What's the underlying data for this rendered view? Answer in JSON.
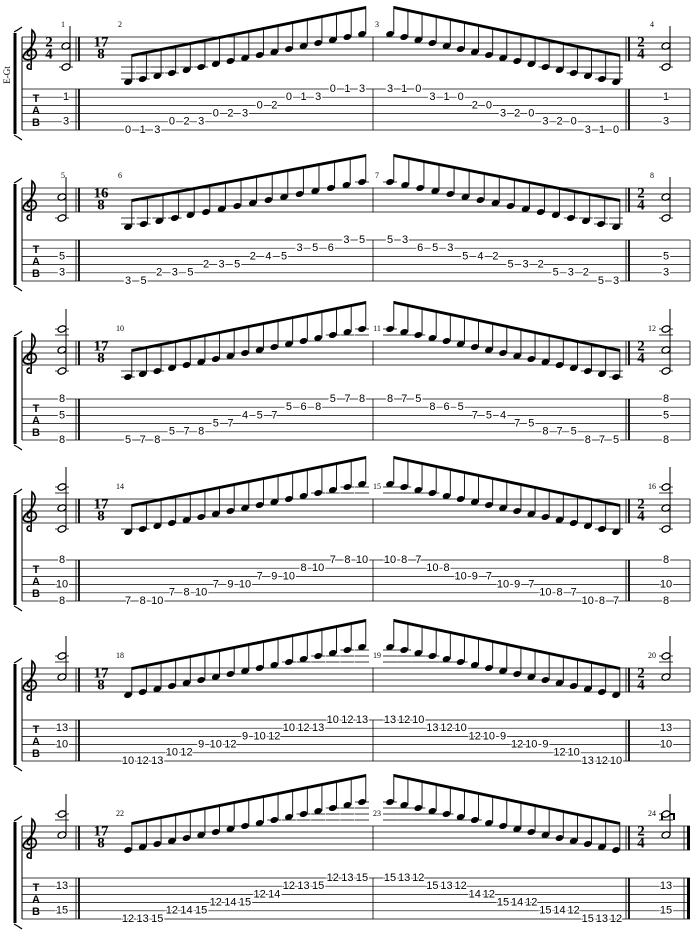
{
  "instrument": "E-Gt",
  "tab_clef": [
    "T",
    "A",
    "B"
  ],
  "systems": [
    {
      "measures": [
        "1",
        "2",
        "3",
        "4"
      ],
      "meter_start": [
        "2",
        "4"
      ],
      "meter_run": [
        "17",
        "8"
      ],
      "meter_chord": [
        "2",
        "4"
      ],
      "chord": [
        [
          2,
          1
        ],
        [
          5,
          3
        ]
      ],
      "ascending": [
        [
          6,
          0
        ],
        [
          6,
          1
        ],
        [
          6,
          3
        ],
        [
          5,
          0
        ],
        [
          5,
          2
        ],
        [
          5,
          3
        ],
        [
          4,
          0
        ],
        [
          4,
          2
        ],
        [
          4,
          3
        ],
        [
          3,
          0
        ],
        [
          3,
          2
        ],
        [
          2,
          0
        ],
        [
          2,
          1
        ],
        [
          2,
          3
        ],
        [
          1,
          0
        ],
        [
          1,
          1
        ],
        [
          1,
          3
        ]
      ],
      "descending": [
        [
          1,
          3
        ],
        [
          1,
          1
        ],
        [
          1,
          0
        ],
        [
          2,
          3
        ],
        [
          2,
          1
        ],
        [
          2,
          0
        ],
        [
          3,
          2
        ],
        [
          3,
          0
        ],
        [
          4,
          3
        ],
        [
          4,
          2
        ],
        [
          4,
          0
        ],
        [
          5,
          3
        ],
        [
          5,
          2
        ],
        [
          5,
          0
        ],
        [
          6,
          3
        ],
        [
          6,
          1
        ],
        [
          6,
          0
        ]
      ]
    },
    {
      "measures": [
        "5",
        "6",
        "7",
        "8"
      ],
      "meter_run": [
        "16",
        "8"
      ],
      "meter_chord": [
        "2",
        "4"
      ],
      "chord": [
        [
          3,
          5
        ],
        [
          5,
          3
        ]
      ],
      "ascending": [
        [
          6,
          3
        ],
        [
          6,
          5
        ],
        [
          5,
          2
        ],
        [
          5,
          3
        ],
        [
          5,
          5
        ],
        [
          4,
          2
        ],
        [
          4,
          3
        ],
        [
          4,
          5
        ],
        [
          3,
          2
        ],
        [
          3,
          4
        ],
        [
          3,
          5
        ],
        [
          2,
          3
        ],
        [
          2,
          5
        ],
        [
          2,
          6
        ],
        [
          1,
          3
        ],
        [
          1,
          5
        ]
      ],
      "descending": [
        [
          1,
          5
        ],
        [
          1,
          3
        ],
        [
          2,
          6
        ],
        [
          2,
          5
        ],
        [
          2,
          3
        ],
        [
          3,
          5
        ],
        [
          3,
          4
        ],
        [
          3,
          2
        ],
        [
          4,
          5
        ],
        [
          4,
          3
        ],
        [
          4,
          2
        ],
        [
          5,
          5
        ],
        [
          5,
          3
        ],
        [
          5,
          2
        ],
        [
          6,
          5
        ],
        [
          6,
          3
        ]
      ]
    },
    {
      "measures": [
        "9",
        "10",
        "11",
        "12"
      ],
      "meter_run": [
        "17",
        "8"
      ],
      "meter_chord": [
        "2",
        "4"
      ],
      "chord": [
        [
          1,
          8
        ],
        [
          3,
          5
        ],
        [
          6,
          8
        ]
      ],
      "ascending": [
        [
          6,
          5
        ],
        [
          6,
          7
        ],
        [
          6,
          8
        ],
        [
          5,
          5
        ],
        [
          5,
          7
        ],
        [
          5,
          8
        ],
        [
          4,
          5
        ],
        [
          4,
          7
        ],
        [
          3,
          4
        ],
        [
          3,
          5
        ],
        [
          3,
          7
        ],
        [
          2,
          5
        ],
        [
          2,
          6
        ],
        [
          2,
          8
        ],
        [
          1,
          5
        ],
        [
          1,
          7
        ],
        [
          1,
          8
        ]
      ],
      "descending": [
        [
          1,
          8
        ],
        [
          1,
          7
        ],
        [
          1,
          5
        ],
        [
          2,
          8
        ],
        [
          2,
          6
        ],
        [
          2,
          5
        ],
        [
          3,
          7
        ],
        [
          3,
          5
        ],
        [
          3,
          4
        ],
        [
          4,
          7
        ],
        [
          4,
          5
        ],
        [
          5,
          8
        ],
        [
          5,
          7
        ],
        [
          5,
          5
        ],
        [
          6,
          8
        ],
        [
          6,
          7
        ],
        [
          6,
          5
        ]
      ]
    },
    {
      "measures": [
        "13",
        "14",
        "15",
        "16"
      ],
      "meter_run": [
        "17",
        "8"
      ],
      "meter_chord": [
        "2",
        "4"
      ],
      "chord": [
        [
          1,
          8
        ],
        [
          4,
          10
        ],
        [
          6,
          8
        ]
      ],
      "ascending": [
        [
          6,
          7
        ],
        [
          6,
          8
        ],
        [
          6,
          10
        ],
        [
          5,
          7
        ],
        [
          5,
          8
        ],
        [
          5,
          10
        ],
        [
          4,
          7
        ],
        [
          4,
          9
        ],
        [
          4,
          10
        ],
        [
          3,
          7
        ],
        [
          3,
          9
        ],
        [
          3,
          10
        ],
        [
          2,
          8
        ],
        [
          2,
          10
        ],
        [
          1,
          7
        ],
        [
          1,
          8
        ],
        [
          1,
          10
        ]
      ],
      "descending": [
        [
          1,
          10
        ],
        [
          1,
          8
        ],
        [
          1,
          7
        ],
        [
          2,
          10
        ],
        [
          2,
          8
        ],
        [
          3,
          10
        ],
        [
          3,
          9
        ],
        [
          3,
          7
        ],
        [
          4,
          10
        ],
        [
          4,
          9
        ],
        [
          4,
          7
        ],
        [
          5,
          10
        ],
        [
          5,
          8
        ],
        [
          5,
          7
        ],
        [
          6,
          10
        ],
        [
          6,
          8
        ],
        [
          6,
          7
        ]
      ]
    },
    {
      "measures": [
        "17",
        "18",
        "19",
        "20"
      ],
      "meter_run": [
        "17",
        "8"
      ],
      "meter_chord": [
        "2",
        "4"
      ],
      "chord": [
        [
          2,
          13
        ],
        [
          4,
          10
        ]
      ],
      "ascending": [
        [
          6,
          10
        ],
        [
          6,
          12
        ],
        [
          6,
          13
        ],
        [
          5,
          10
        ],
        [
          5,
          12
        ],
        [
          4,
          9
        ],
        [
          4,
          10
        ],
        [
          4,
          12
        ],
        [
          3,
          9
        ],
        [
          3,
          10
        ],
        [
          3,
          12
        ],
        [
          2,
          10
        ],
        [
          2,
          12
        ],
        [
          2,
          13
        ],
        [
          1,
          10
        ],
        [
          1,
          12
        ],
        [
          1,
          13
        ]
      ],
      "descending": [
        [
          1,
          13
        ],
        [
          1,
          12
        ],
        [
          1,
          10
        ],
        [
          2,
          13
        ],
        [
          2,
          12
        ],
        [
          2,
          10
        ],
        [
          3,
          12
        ],
        [
          3,
          10
        ],
        [
          3,
          9
        ],
        [
          4,
          12
        ],
        [
          4,
          10
        ],
        [
          4,
          9
        ],
        [
          5,
          12
        ],
        [
          5,
          10
        ],
        [
          6,
          13
        ],
        [
          6,
          12
        ],
        [
          6,
          10
        ]
      ]
    },
    {
      "measures": [
        "21",
        "22",
        "23",
        "24"
      ],
      "meter_run": [
        "17",
        "8"
      ],
      "meter_chord": [
        "2",
        "4"
      ],
      "chord": [
        [
          2,
          13
        ],
        [
          5,
          15
        ]
      ],
      "ascending": [
        [
          6,
          12
        ],
        [
          6,
          13
        ],
        [
          6,
          15
        ],
        [
          5,
          12
        ],
        [
          5,
          14
        ],
        [
          5,
          15
        ],
        [
          4,
          12
        ],
        [
          4,
          14
        ],
        [
          4,
          15
        ],
        [
          3,
          12
        ],
        [
          3,
          14
        ],
        [
          2,
          12
        ],
        [
          2,
          13
        ],
        [
          2,
          15
        ],
        [
          1,
          12
        ],
        [
          1,
          13
        ],
        [
          1,
          15
        ]
      ],
      "descending": [
        [
          1,
          15
        ],
        [
          1,
          13
        ],
        [
          1,
          12
        ],
        [
          2,
          15
        ],
        [
          2,
          13
        ],
        [
          2,
          12
        ],
        [
          3,
          14
        ],
        [
          3,
          12
        ],
        [
          4,
          15
        ],
        [
          4,
          14
        ],
        [
          4,
          12
        ],
        [
          5,
          15
        ],
        [
          5,
          14
        ],
        [
          5,
          12
        ],
        [
          6,
          15
        ],
        [
          6,
          13
        ],
        [
          6,
          12
        ]
      ]
    }
  ]
}
